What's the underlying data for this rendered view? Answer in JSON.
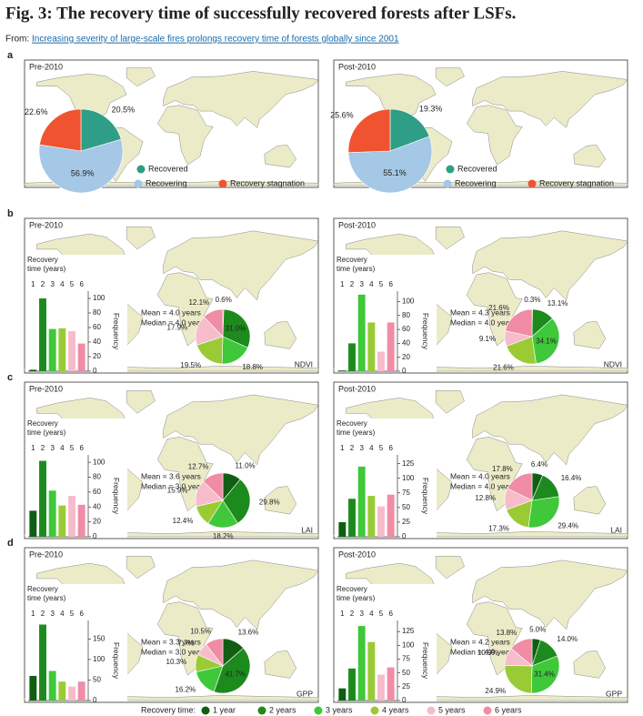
{
  "header": {
    "title": "Fig. 3: The recovery time of successfully recovered forests after LSFs.",
    "source_prefix": "From:",
    "source_link": "Increasing severity of large-scale fires prolongs recovery time of forests globally since 2001"
  },
  "panel_labels": [
    "a",
    "b",
    "c",
    "d"
  ],
  "chart_data": [
    {
      "type": "pie",
      "title": "Pre-2010",
      "categories": [
        "Recovered",
        "Recovering",
        "Recovery stagnation"
      ],
      "values": [
        20.5,
        56.9,
        22.6
      ],
      "value_labels": [
        "20.5%",
        "56.9%",
        "22.6%"
      ],
      "colors": [
        "#2e9e86",
        "#a4c8e6",
        "#f0532f"
      ]
    },
    {
      "type": "pie",
      "title": "Post-2010",
      "categories": [
        "Recovered",
        "Recovering",
        "Recovery stagnation"
      ],
      "values": [
        19.3,
        55.1,
        25.6
      ],
      "value_labels": [
        "19.3%",
        "55.1%",
        "25.6%"
      ],
      "colors": [
        "#2e9e86",
        "#a4c8e6",
        "#f0532f"
      ]
    },
    {
      "type": "bar",
      "title": "Pre-2010",
      "x_label": "Recovery time (years)",
      "y_label": "Frequency",
      "categories": [
        "1",
        "2",
        "3",
        "4",
        "5",
        "6"
      ],
      "values": [
        2,
        100,
        58,
        59,
        55,
        38
      ],
      "ylim": [
        0,
        110
      ],
      "yticks": [
        0,
        20,
        40,
        60,
        80,
        100
      ],
      "pie_values": [
        0.6,
        31.0,
        18.8,
        19.5,
        17.9,
        12.1
      ],
      "pie_value_labels": [
        "0.6%",
        "31.0%",
        "18.8%",
        "19.5%",
        "17.9%",
        "12.1%"
      ],
      "stats": [
        "Mean = 4.0 years",
        "Median = 4.0 years"
      ],
      "metric": "NDVI",
      "colors": [
        "#0f5e12",
        "#1d8a1d",
        "#3ec83a",
        "#9acb35",
        "#f7bccb",
        "#f08ca4"
      ]
    },
    {
      "type": "bar",
      "title": "Post-2010",
      "x_label": "Recovery time (years)",
      "y_label": "Frequency",
      "categories": [
        "1",
        "2",
        "3",
        "4",
        "5",
        "6"
      ],
      "values": [
        1,
        40,
        110,
        70,
        28,
        70
      ],
      "ylim": [
        0,
        115
      ],
      "yticks": [
        0,
        20,
        40,
        60,
        80,
        100
      ],
      "pie_values": [
        0.3,
        13.1,
        34.1,
        21.6,
        9.1,
        21.6
      ],
      "pie_value_labels": [
        "0.3%",
        "13.1%",
        "34.1%",
        "21.6%",
        "9.1%",
        "21.6%"
      ],
      "stats": [
        "Mean = 4.3 years",
        "Median = 4.0 years"
      ],
      "metric": "NDVI",
      "colors": [
        "#0f5e12",
        "#1d8a1d",
        "#3ec83a",
        "#9acb35",
        "#f7bccb",
        "#f08ca4"
      ]
    },
    {
      "type": "bar",
      "title": "Pre-2010",
      "x_label": "Recovery time (years)",
      "y_label": "Frequency",
      "categories": [
        "1",
        "2",
        "3",
        "4",
        "5",
        "6"
      ],
      "values": [
        35,
        102,
        62,
        42,
        55,
        43
      ],
      "ylim": [
        0,
        110
      ],
      "yticks": [
        0,
        20,
        40,
        60,
        80,
        100
      ],
      "pie_values": [
        11.0,
        29.8,
        18.2,
        12.4,
        15.9,
        12.7
      ],
      "pie_value_labels": [
        "11.0%",
        "29.8%",
        "18.2%",
        "12.4%",
        "15.9%",
        "12.7%"
      ],
      "stats": [
        "Mean = 3.6 years",
        "Median = 3.0 years"
      ],
      "metric": "LAI",
      "colors": [
        "#0f5e12",
        "#1d8a1d",
        "#3ec83a",
        "#9acb35",
        "#f7bccb",
        "#f08ca4"
      ]
    },
    {
      "type": "bar",
      "title": "Post-2010",
      "x_label": "Recovery time (years)",
      "y_label": "Frequency",
      "categories": [
        "1",
        "2",
        "3",
        "4",
        "5",
        "6"
      ],
      "values": [
        25,
        65,
        120,
        70,
        52,
        72
      ],
      "ylim": [
        0,
        140
      ],
      "yticks": [
        0,
        25,
        50,
        75,
        100,
        125
      ],
      "pie_values": [
        6.4,
        16.4,
        29.4,
        17.3,
        12.8,
        17.8
      ],
      "pie_value_labels": [
        "6.4%",
        "16.4%",
        "29.4%",
        "17.3%",
        "12.8%",
        "17.8%"
      ],
      "stats": [
        "Mean = 4.0 years",
        "Median = 4.0 years"
      ],
      "metric": "LAI",
      "colors": [
        "#0f5e12",
        "#1d8a1d",
        "#3ec83a",
        "#9acb35",
        "#f7bccb",
        "#f08ca4"
      ]
    },
    {
      "type": "bar",
      "title": "Pre-2010",
      "x_label": "Recovery time (years)",
      "y_label": "Frequency",
      "categories": [
        "1",
        "2",
        "3",
        "4",
        "5",
        "6"
      ],
      "values": [
        60,
        185,
        72,
        46,
        34,
        46
      ],
      "ylim": [
        0,
        195
      ],
      "yticks": [
        0,
        50,
        100,
        150
      ],
      "pie_values": [
        13.6,
        41.7,
        16.2,
        10.3,
        7.7,
        10.5
      ],
      "pie_value_labels": [
        "13.6%",
        "41.7%",
        "16.2%",
        "10.3%",
        "7.7%",
        "10.5%"
      ],
      "stats": [
        "Mean = 3.3 years",
        "Median = 3.0 years"
      ],
      "metric": "GPP",
      "colors": [
        "#0f5e12",
        "#1d8a1d",
        "#3ec83a",
        "#9acb35",
        "#f7bccb",
        "#f08ca4"
      ]
    },
    {
      "type": "bar",
      "title": "Post-2010",
      "x_label": "Recovery time (years)",
      "y_label": "Frequency",
      "categories": [
        "1",
        "2",
        "3",
        "4",
        "5",
        "6"
      ],
      "values": [
        22,
        58,
        135,
        106,
        47,
        60
      ],
      "ylim": [
        0,
        145
      ],
      "yticks": [
        0,
        25,
        50,
        75,
        100,
        125
      ],
      "pie_values": [
        5.0,
        14.0,
        31.4,
        24.9,
        10.9,
        13.8
      ],
      "pie_value_labels": [
        "5.0%",
        "14.0%",
        "31.4%",
        "24.9%",
        "10.9%",
        "13.8%"
      ],
      "stats": [
        "Mean = 4.2 years",
        "Median = 4.0 years"
      ],
      "metric": "GPP",
      "colors": [
        "#0f5e12",
        "#1d8a1d",
        "#3ec83a",
        "#9acb35",
        "#f7bccb",
        "#f08ca4"
      ]
    }
  ],
  "legend": {
    "title": "Recovery time:",
    "labels": [
      "1 year",
      "2 years",
      "3 years",
      "4 years",
      "5 years",
      "6 years"
    ],
    "colors": [
      "#0f5e12",
      "#1d8a1d",
      "#3ec83a",
      "#9acb35",
      "#f7bccb",
      "#f08ca4"
    ]
  }
}
